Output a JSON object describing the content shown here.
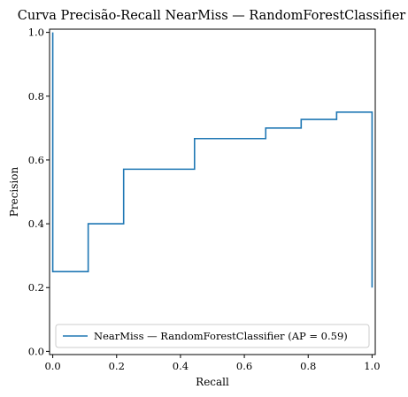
{
  "chart_data": {
    "type": "line",
    "drawstyle": "steps-post",
    "title": "Curva Precisão-Recall NearMiss — RandomForestClassifier",
    "xlabel": "Recall",
    "ylabel": "Precision",
    "xlim": [
      -0.01,
      1.01
    ],
    "ylim": [
      -0.01,
      1.01
    ],
    "xticks": [
      0.0,
      0.2,
      0.4,
      0.6,
      0.8,
      1.0
    ],
    "xtick_labels": [
      "0.0",
      "0.2",
      "0.4",
      "0.6",
      "0.8",
      "1.0"
    ],
    "yticks": [
      0.0,
      0.2,
      0.4,
      0.6,
      0.8,
      1.0
    ],
    "ytick_labels": [
      "0.0",
      "0.2",
      "0.4",
      "0.6",
      "0.8",
      "1.0"
    ],
    "grid": false,
    "legend_position": "lower-right",
    "series": [
      {
        "name": "NearMiss — RandomForestClassifier (AP = 0.59)",
        "color": "#1f77b4",
        "points": [
          [
            0.0,
            1.0
          ],
          [
            0.0,
            0.25
          ],
          [
            0.111,
            0.25
          ],
          [
            0.111,
            0.4
          ],
          [
            0.222,
            0.4
          ],
          [
            0.222,
            0.571
          ],
          [
            0.444,
            0.571
          ],
          [
            0.444,
            0.667
          ],
          [
            0.667,
            0.667
          ],
          [
            0.667,
            0.7
          ],
          [
            0.778,
            0.7
          ],
          [
            0.778,
            0.727
          ],
          [
            0.889,
            0.727
          ],
          [
            0.889,
            0.75
          ],
          [
            1.0,
            0.75
          ],
          [
            1.0,
            0.2
          ]
        ]
      }
    ]
  }
}
